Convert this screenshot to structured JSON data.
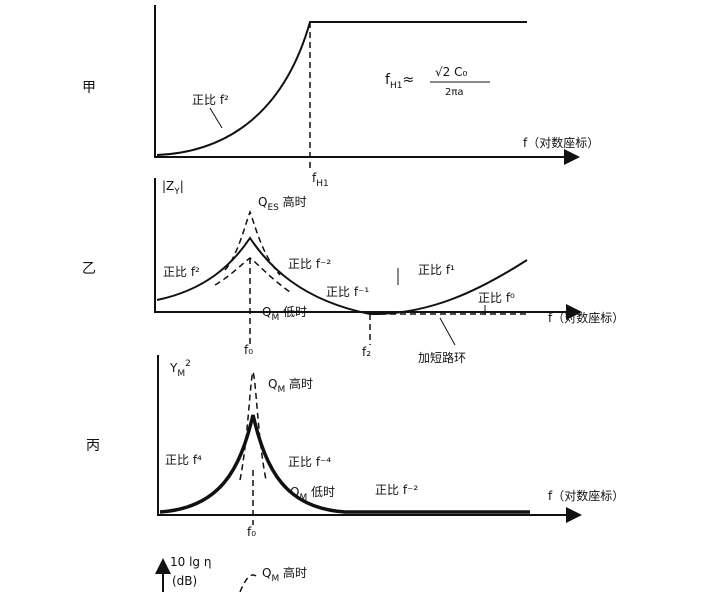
{
  "panels": [
    {
      "label": "甲",
      "texts": {
        "slope": "正比 f²",
        "formula_lhs": "f",
        "formula_lhs_sub": "H1",
        "formula_approx": "≈",
        "formula_num": "√2 C₀",
        "formula_den": "2πa",
        "x_axis": "f（对数座标）",
        "marker": "f",
        "marker_sub": "H1"
      }
    },
    {
      "label": "乙",
      "texts": {
        "y_axis": "|Z",
        "y_axis_sub": "Y",
        "y_axis_end": "|",
        "q_high": "Q",
        "q_high_sub": "ES",
        "q_high_rest": " 高时",
        "rise": "正比 f²",
        "fall2": "正比 f⁻²",
        "fall1": "正比 f⁻¹",
        "rise1": "正比 f¹",
        "flat": "正比 f⁰",
        "q_low": "Q",
        "q_low_sub": "M",
        "q_low_rest": " 低时",
        "x_axis": "f（对数座标）",
        "f0": "f₀",
        "f2": "f₂",
        "ring": "加短路环"
      }
    },
    {
      "label": "丙",
      "texts": {
        "y_axis": "Y",
        "y_axis_sub": "M",
        "y_axis_sup": "2",
        "q_high": "Q",
        "q_high_sub": "M",
        "q_high_rest": " 高时",
        "rise": "正比 f⁴",
        "fall4": "正比 f⁻⁴",
        "q_low": "Q",
        "q_low_sub": "M",
        "q_low_rest": " 低时",
        "fall2": "正比 f⁻²",
        "x_axis": "f（对数座标）",
        "f0": "f₀"
      }
    },
    {
      "texts": {
        "y_axis": "10 lg η",
        "y_unit": "(dB)",
        "q_high": "Q",
        "q_high_sub": "M",
        "q_high_rest": " 高时"
      }
    }
  ]
}
